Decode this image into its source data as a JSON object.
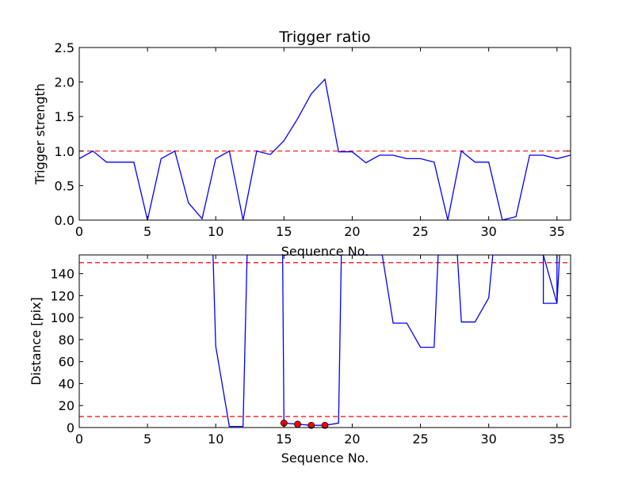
{
  "colors": {
    "line": "#0000ff",
    "threshold": "#ff0000",
    "marker": "#ff0000",
    "axes": "#000000",
    "background": "#ffffff"
  },
  "chart_data": [
    {
      "type": "line",
      "title": "Trigger ratio",
      "xlabel": "Sequence No.",
      "ylabel": "Trigger strength",
      "xlim": [
        0,
        36
      ],
      "ylim": [
        0,
        2.5
      ],
      "xticks": [
        0,
        5,
        10,
        15,
        20,
        25,
        30,
        35
      ],
      "yticks": [
        0.0,
        0.5,
        1.0,
        1.5,
        2.0,
        2.5
      ],
      "xtick_labels": [
        "0",
        "5",
        "10",
        "15",
        "20",
        "25",
        "30",
        "35"
      ],
      "ytick_labels": [
        "0.0",
        "0.5",
        "1.0",
        "1.5",
        "2.0",
        "2.5"
      ],
      "grid": false,
      "series": [
        {
          "x": [
            0,
            1,
            2,
            3,
            4,
            5,
            6,
            7,
            8,
            9,
            10,
            11,
            12,
            13,
            14,
            15,
            16,
            17,
            18,
            19,
            20,
            21,
            22,
            23,
            24,
            25,
            26,
            27,
            28,
            29,
            30,
            31,
            32,
            33,
            34,
            35,
            36
          ],
          "y": [
            0.89,
            1.0,
            0.84,
            0.84,
            0.84,
            0.0,
            0.89,
            1.0,
            0.25,
            0.02,
            0.89,
            1.0,
            0.0,
            1.0,
            0.95,
            1.15,
            1.47,
            1.83,
            2.04,
            0.99,
            0.99,
            0.83,
            0.94,
            0.94,
            0.89,
            0.89,
            0.84,
            0.0,
            1.0,
            0.84,
            0.84,
            0.0,
            0.05,
            0.94,
            0.94,
            0.89,
            0.94
          ]
        }
      ],
      "hlines": [
        1.0
      ]
    },
    {
      "type": "line",
      "title": "",
      "xlabel": "Sequence No.",
      "ylabel": "Distance [pix]",
      "xlim": [
        0,
        36
      ],
      "ylim": [
        0,
        157
      ],
      "xticks": [
        0,
        5,
        10,
        15,
        20,
        25,
        30,
        35
      ],
      "yticks": [
        0,
        20,
        40,
        60,
        80,
        100,
        120,
        140
      ],
      "xtick_labels": [
        "0",
        "5",
        "10",
        "15",
        "20",
        "25",
        "30",
        "35"
      ],
      "ytick_labels": [
        "0",
        "20",
        "40",
        "60",
        "80",
        "100",
        "120",
        "140"
      ],
      "grid": false,
      "series": [
        {
          "x": [
            9.8,
            10,
            11,
            12,
            12.3,
            14.9,
            15,
            16,
            17,
            18,
            19,
            19.2,
            22.2,
            23,
            24,
            25,
            26,
            26.3,
            27.7,
            28,
            29,
            30,
            30.3,
            34,
            35,
            35.2
          ],
          "y": [
            157,
            74,
            1,
            1,
            157,
            157,
            4,
            3,
            2,
            2,
            4,
            157,
            157,
            95,
            95,
            73,
            73,
            157,
            157,
            96,
            96,
            118,
            157,
            157,
            113,
            157
          ],
          "extra_segment": {
            "x": [
              34,
              34,
              35,
              35
            ],
            "y": [
              157,
              113,
              113,
              157
            ]
          }
        }
      ],
      "markers": {
        "x": [
          15,
          16,
          17,
          18
        ],
        "y": [
          4,
          3,
          2,
          2
        ]
      },
      "hlines": [
        150,
        10
      ]
    }
  ]
}
